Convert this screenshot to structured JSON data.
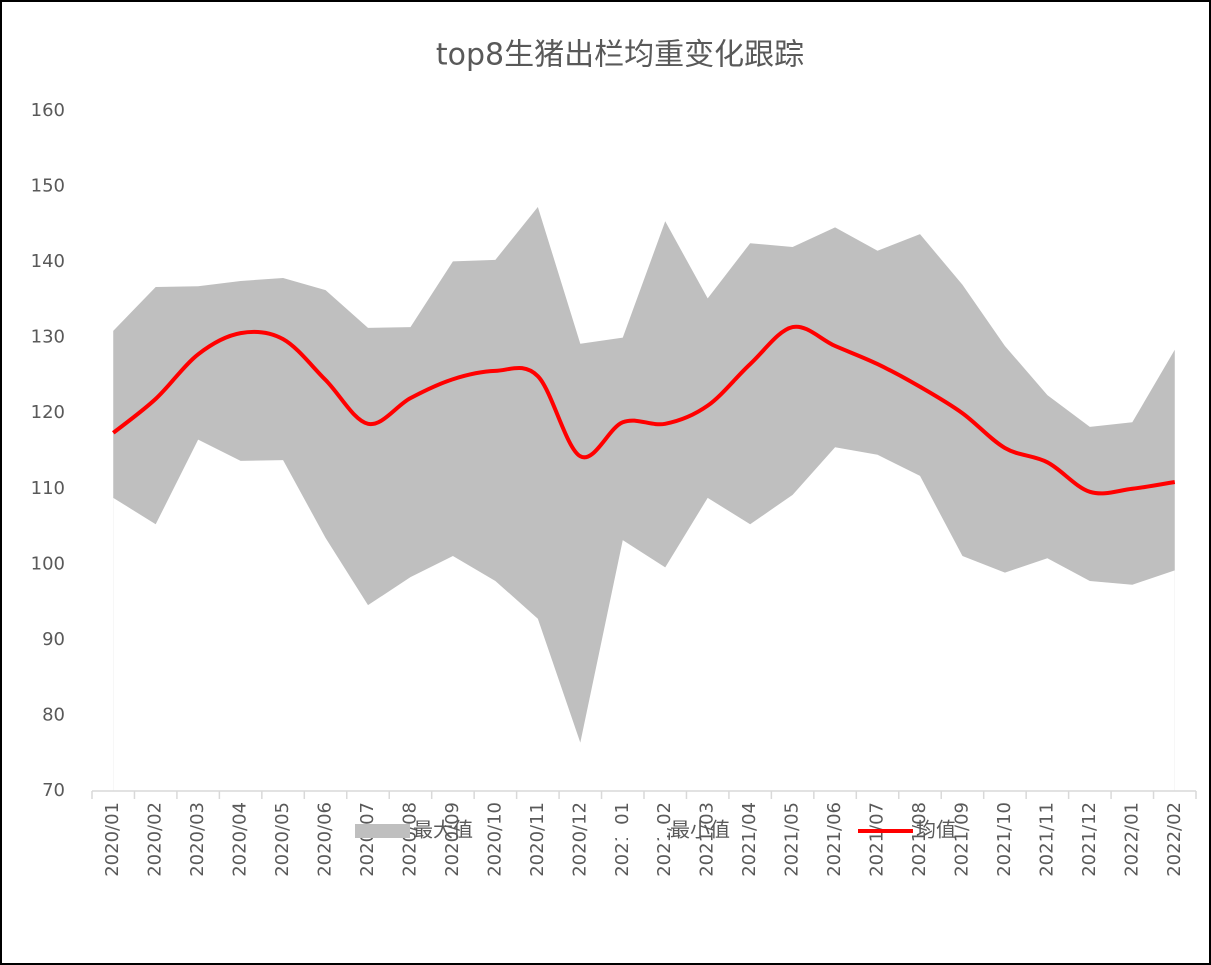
{
  "chart_data": {
    "type": "area-line",
    "title": "top8生猪出栏均重变化跟踪",
    "categories": [
      "2020/01",
      "2020/02",
      "2020/03",
      "2020/04",
      "2020/05",
      "2020/06",
      "2020/07",
      "2020/08",
      "2020/09",
      "2020/10",
      "2020/11",
      "2020/12",
      "2021/01",
      "2021/02",
      "2021/03",
      "2021/04",
      "2021/05",
      "2021/06",
      "2021/07",
      "2021/08",
      "2021/09",
      "2021/10",
      "2021/11",
      "2021/12",
      "2022/01",
      "2022/02"
    ],
    "series": [
      {
        "name": "最大值",
        "kind": "area",
        "color": "#bfbfbf",
        "values": [
          130.9,
          136.7,
          136.8,
          137.5,
          137.9,
          136.3,
          131.3,
          131.4,
          140.1,
          140.3,
          147.3,
          129.2,
          130.0,
          145.4,
          135.2,
          142.5,
          142.0,
          144.6,
          141.5,
          143.7,
          137.0,
          128.9,
          122.4,
          118.2,
          118.8,
          128.4
        ]
      },
      {
        "name": "最小值",
        "kind": "area",
        "color": "#ffffff",
        "values": [
          108.8,
          105.3,
          116.5,
          113.7,
          113.8,
          103.5,
          94.6,
          98.3,
          101.1,
          97.8,
          92.8,
          76.4,
          103.2,
          99.6,
          108.8,
          105.3,
          109.2,
          115.5,
          114.5,
          111.7,
          101.1,
          98.9,
          100.8,
          97.8,
          97.3,
          99.2
        ]
      },
      {
        "name": "均值",
        "kind": "line",
        "color": "#ff0000",
        "values": [
          117.4,
          121.9,
          127.8,
          130.6,
          129.8,
          124.4,
          118.6,
          122.0,
          124.5,
          125.6,
          124.9,
          114.3,
          118.8,
          118.6,
          121.0,
          126.5,
          131.4,
          128.9,
          126.5,
          123.5,
          120.0,
          115.4,
          113.5,
          109.6,
          110.0,
          110.9
        ]
      }
    ],
    "ylim": [
      70,
      160
    ],
    "yticks": [
      70,
      80,
      90,
      100,
      110,
      120,
      130,
      140,
      150,
      160
    ],
    "grid": false,
    "legend": "bottom"
  }
}
